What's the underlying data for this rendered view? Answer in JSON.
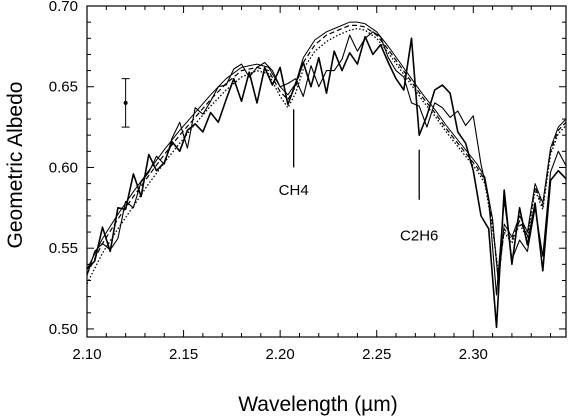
{
  "chart_data": {
    "type": "line",
    "title": "",
    "xlabel": "Wavelength (µm)",
    "ylabel": "Geometric Albedo",
    "xlim": [
      2.1,
      2.348
    ],
    "ylim": [
      0.495,
      0.7
    ],
    "x_ticks": [
      2.1,
      2.15,
      2.2,
      2.25,
      2.3
    ],
    "y_ticks": [
      0.5,
      0.55,
      0.6,
      0.65,
      0.7
    ],
    "x_tick_labels": [
      "2.10",
      "2.15",
      "2.20",
      "2.25",
      "2.30"
    ],
    "y_tick_labels": [
      "0.50",
      "0.55",
      "0.60",
      "0.65",
      "0.70"
    ],
    "grid": false,
    "legend": "none",
    "error_bar": {
      "x": 2.12,
      "y": 0.64,
      "low": 0.625,
      "high": 0.655
    },
    "annotations": [
      {
        "text": "CH4",
        "x": 2.207,
        "y": 0.586,
        "line_x": 2.207,
        "line_y": [
          0.6,
          0.636
        ]
      },
      {
        "text": "C2H6",
        "x": 2.272,
        "y": 0.558,
        "line_x": 2.272,
        "line_y": [
          0.58,
          0.611
        ]
      }
    ],
    "series": [
      {
        "style": "solid-thick",
        "x": [
          2.1,
          2.104,
          2.108,
          2.112,
          2.116,
          2.12,
          2.124,
          2.128,
          2.132,
          2.136,
          2.14,
          2.144,
          2.148,
          2.152,
          2.156,
          2.16,
          2.164,
          2.168,
          2.172,
          2.176,
          2.18,
          2.184,
          2.188,
          2.192,
          2.196,
          2.2,
          2.204,
          2.208,
          2.212,
          2.216,
          2.22,
          2.224,
          2.228,
          2.232,
          2.236,
          2.24,
          2.244,
          2.248,
          2.252,
          2.256,
          2.26,
          2.264,
          2.268,
          2.272,
          2.276,
          2.28,
          2.284,
          2.288,
          2.292,
          2.296,
          2.3,
          2.304,
          2.308,
          2.312,
          2.316,
          2.32,
          2.324,
          2.328,
          2.332,
          2.336,
          2.34,
          2.344,
          2.348
        ],
        "y": [
          0.537,
          0.542,
          0.563,
          0.548,
          0.575,
          0.574,
          0.596,
          0.582,
          0.608,
          0.598,
          0.603,
          0.616,
          0.61,
          0.623,
          0.627,
          0.622,
          0.634,
          0.628,
          0.642,
          0.655,
          0.641,
          0.659,
          0.64,
          0.662,
          0.651,
          0.662,
          0.639,
          0.652,
          0.665,
          0.65,
          0.668,
          0.646,
          0.672,
          0.66,
          0.671,
          0.664,
          0.681,
          0.67,
          0.676,
          0.665,
          0.655,
          0.648,
          0.68,
          0.62,
          0.632,
          0.648,
          0.651,
          0.646,
          0.622,
          0.615,
          0.598,
          0.57,
          0.562,
          0.501,
          0.586,
          0.54,
          0.575,
          0.552,
          0.578,
          0.536,
          0.592,
          0.598,
          0.593
        ]
      },
      {
        "style": "solid-thin",
        "x": [
          2.1,
          2.104,
          2.108,
          2.112,
          2.116,
          2.12,
          2.124,
          2.128,
          2.132,
          2.136,
          2.14,
          2.144,
          2.148,
          2.152,
          2.156,
          2.16,
          2.164,
          2.168,
          2.172,
          2.176,
          2.18,
          2.184,
          2.188,
          2.192,
          2.196,
          2.2,
          2.204,
          2.208,
          2.212,
          2.216,
          2.22,
          2.224,
          2.228,
          2.232,
          2.236,
          2.24,
          2.244,
          2.248,
          2.252,
          2.256,
          2.26,
          2.264,
          2.268,
          2.272,
          2.276,
          2.28,
          2.284,
          2.288,
          2.292,
          2.296,
          2.3,
          2.304,
          2.308,
          2.312,
          2.316,
          2.32,
          2.324,
          2.328,
          2.332,
          2.336,
          2.34,
          2.344,
          2.348
        ],
        "y": [
          0.533,
          0.548,
          0.553,
          0.549,
          0.556,
          0.579,
          0.575,
          0.591,
          0.597,
          0.607,
          0.602,
          0.618,
          0.628,
          0.612,
          0.637,
          0.633,
          0.641,
          0.65,
          0.651,
          0.661,
          0.664,
          0.656,
          0.662,
          0.665,
          0.66,
          0.65,
          0.652,
          0.655,
          0.644,
          0.663,
          0.65,
          0.66,
          0.66,
          0.667,
          0.682,
          0.672,
          0.68,
          0.684,
          0.681,
          0.668,
          0.66,
          0.656,
          0.64,
          0.638,
          0.625,
          0.64,
          0.637,
          0.631,
          0.635,
          0.626,
          0.632,
          0.602,
          0.58,
          0.521,
          0.58,
          0.543,
          0.555,
          0.548,
          0.575,
          0.545,
          0.597,
          0.61,
          0.601
        ]
      },
      {
        "style": "model-solid",
        "x": [
          2.1,
          2.108,
          2.116,
          2.124,
          2.132,
          2.14,
          2.148,
          2.156,
          2.164,
          2.172,
          2.18,
          2.188,
          2.194,
          2.2,
          2.204,
          2.208,
          2.212,
          2.218,
          2.224,
          2.23,
          2.236,
          2.24,
          2.244,
          2.25,
          2.256,
          2.262,
          2.268,
          2.274,
          2.28,
          2.286,
          2.292,
          2.298,
          2.302,
          2.306,
          2.31,
          2.313,
          2.316,
          2.32,
          2.324,
          2.328,
          2.332,
          2.336,
          2.34,
          2.344,
          2.348
        ],
        "y": [
          0.537,
          0.556,
          0.571,
          0.585,
          0.598,
          0.611,
          0.623,
          0.634,
          0.645,
          0.655,
          0.662,
          0.664,
          0.662,
          0.65,
          0.645,
          0.652,
          0.668,
          0.679,
          0.684,
          0.687,
          0.69,
          0.69,
          0.689,
          0.684,
          0.675,
          0.665,
          0.655,
          0.645,
          0.636,
          0.626,
          0.617,
          0.608,
          0.602,
          0.594,
          0.568,
          0.528,
          0.565,
          0.557,
          0.57,
          0.56,
          0.59,
          0.578,
          0.612,
          0.625,
          0.63
        ]
      },
      {
        "style": "model-dashed",
        "x": [
          2.1,
          2.108,
          2.116,
          2.124,
          2.132,
          2.14,
          2.148,
          2.156,
          2.164,
          2.172,
          2.18,
          2.188,
          2.194,
          2.2,
          2.204,
          2.208,
          2.212,
          2.218,
          2.224,
          2.23,
          2.236,
          2.24,
          2.244,
          2.25,
          2.256,
          2.262,
          2.268,
          2.274,
          2.28,
          2.286,
          2.292,
          2.298,
          2.302,
          2.306,
          2.31,
          2.313,
          2.316,
          2.32,
          2.324,
          2.328,
          2.332,
          2.336,
          2.34,
          2.344,
          2.348
        ],
        "y": [
          0.534,
          0.553,
          0.568,
          0.582,
          0.595,
          0.608,
          0.62,
          0.631,
          0.642,
          0.652,
          0.66,
          0.662,
          0.66,
          0.647,
          0.642,
          0.65,
          0.665,
          0.676,
          0.682,
          0.685,
          0.688,
          0.688,
          0.687,
          0.682,
          0.673,
          0.663,
          0.653,
          0.643,
          0.634,
          0.624,
          0.615,
          0.606,
          0.6,
          0.592,
          0.565,
          0.53,
          0.562,
          0.555,
          0.567,
          0.558,
          0.588,
          0.576,
          0.61,
          0.623,
          0.628
        ]
      },
      {
        "style": "model-dotted",
        "x": [
          2.1,
          2.108,
          2.116,
          2.124,
          2.132,
          2.14,
          2.148,
          2.156,
          2.164,
          2.172,
          2.18,
          2.188,
          2.194,
          2.2,
          2.204,
          2.208,
          2.212,
          2.218,
          2.224,
          2.23,
          2.236,
          2.24,
          2.244,
          2.25,
          2.256,
          2.262,
          2.268,
          2.274,
          2.28,
          2.286,
          2.292,
          2.298,
          2.302,
          2.306,
          2.31,
          2.313,
          2.316,
          2.32,
          2.324,
          2.328,
          2.332,
          2.336,
          2.34,
          2.344,
          2.348
        ],
        "y": [
          0.528,
          0.547,
          0.562,
          0.576,
          0.59,
          0.603,
          0.615,
          0.627,
          0.638,
          0.648,
          0.656,
          0.66,
          0.658,
          0.644,
          0.637,
          0.646,
          0.661,
          0.672,
          0.678,
          0.682,
          0.685,
          0.686,
          0.685,
          0.68,
          0.671,
          0.661,
          0.651,
          0.641,
          0.632,
          0.622,
          0.613,
          0.604,
          0.598,
          0.59,
          0.562,
          0.535,
          0.56,
          0.553,
          0.565,
          0.556,
          0.586,
          0.574,
          0.608,
          0.621,
          0.626
        ]
      }
    ]
  }
}
